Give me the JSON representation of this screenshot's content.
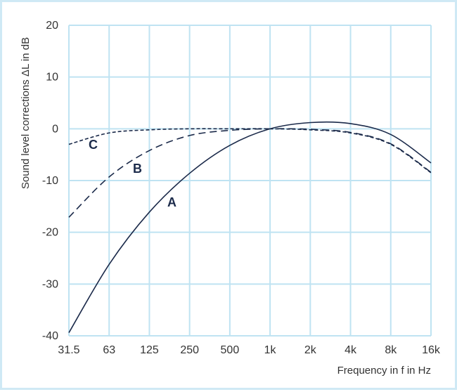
{
  "chart_data": {
    "type": "line",
    "xlabel": "Frequency in f in Hz",
    "ylabel": "Sound level corrections ΔL in dB",
    "x_ticks": [
      "31.5",
      "63",
      "125",
      "250",
      "500",
      "1k",
      "2k",
      "4k",
      "8k",
      "16k"
    ],
    "x": [
      31.5,
      63,
      125,
      250,
      500,
      1000,
      2000,
      4000,
      8000,
      16000
    ],
    "y_ticks": [
      "20",
      "10",
      "0",
      "-10",
      "-20",
      "-30",
      "-40"
    ],
    "ylim": [
      -40,
      20
    ],
    "xlim": [
      31.5,
      16000
    ],
    "x_scale": "log",
    "grid": true,
    "series": [
      {
        "name": "A",
        "style": "solid",
        "values": [
          -39.4,
          -26.2,
          -16.1,
          -8.6,
          -3.2,
          0.0,
          1.2,
          1.0,
          -1.1,
          -6.6
        ]
      },
      {
        "name": "B",
        "style": "dashed",
        "values": [
          -17.1,
          -9.3,
          -4.2,
          -1.3,
          -0.3,
          0.0,
          -0.1,
          -0.7,
          -2.9,
          -8.4
        ]
      },
      {
        "name": "C",
        "style": "dashed",
        "values": [
          -3.0,
          -0.8,
          -0.2,
          0.0,
          0.0,
          0.0,
          -0.2,
          -0.8,
          -3.0,
          -8.5
        ]
      }
    ],
    "colors": {
      "grid": "#bfe3f2",
      "curve": "#1b2a4a",
      "frame": "#cfe9f5"
    }
  }
}
